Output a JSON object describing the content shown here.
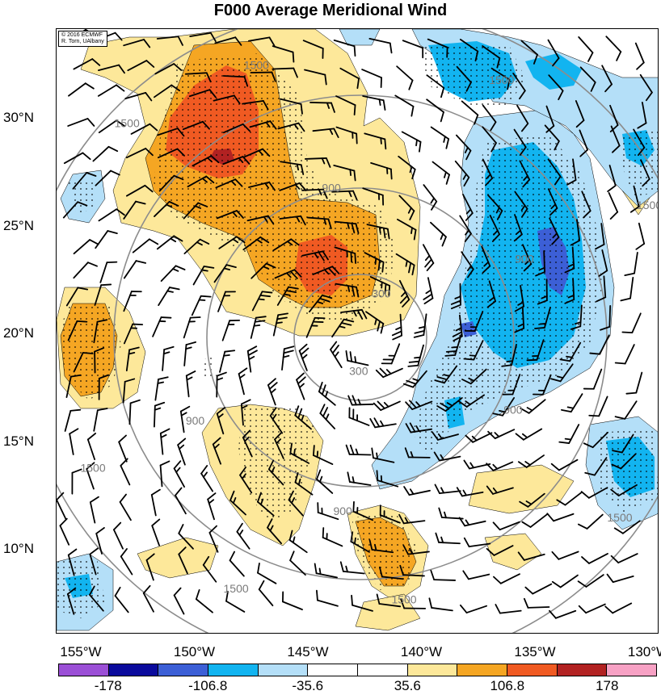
{
  "title": "F000 Average Meridional Wind",
  "credit": [
    "© 2016 ECMWF",
    "R. Torn, UAlbany"
  ],
  "lat_labels": [
    {
      "text": "30°N",
      "lat": 30
    },
    {
      "text": "25°N",
      "lat": 25
    },
    {
      "text": "20°N",
      "lat": 20
    },
    {
      "text": "15°N",
      "lat": 15
    },
    {
      "text": "10°N",
      "lat": 10
    }
  ],
  "lon_labels": [
    {
      "text": "155°W",
      "lon": -155
    },
    {
      "text": "150°W",
      "lon": -150
    },
    {
      "text": "145°W",
      "lon": -145
    },
    {
      "text": "140°W",
      "lon": -140
    },
    {
      "text": "135°W",
      "lon": -135
    },
    {
      "text": "130°W",
      "lon": -130
    }
  ],
  "colorbar": {
    "colors": [
      "#9b4fd6",
      "#0a0a9c",
      "#3c5fd6",
      "#12b4f0",
      "#b4dff8",
      "#ffffff",
      "#ffffff",
      "#fde89a",
      "#f5a623",
      "#f05a22",
      "#b22222",
      "#f7a1c4"
    ],
    "labels": [
      {
        "text": "-178",
        "boundary": 1
      },
      {
        "text": "-106.8",
        "boundary": 3
      },
      {
        "text": "-35.6",
        "boundary": 5
      },
      {
        "text": "35.6",
        "boundary": 7
      },
      {
        "text": "106.8",
        "boundary": 9
      },
      {
        "text": "178",
        "boundary": 11
      }
    ]
  },
  "contour_labels": [
    {
      "text": "1500",
      "lon": -147.3,
      "lat": 32.5
    },
    {
      "text": "1500",
      "lon": -136.5,
      "lat": 31.8
    },
    {
      "text": "1500",
      "lon": -153.0,
      "lat": 29.8
    },
    {
      "text": "1500",
      "lon": -130.0,
      "lat": 26.0
    },
    {
      "text": "1500",
      "lon": -154.5,
      "lat": 13.8
    },
    {
      "text": "1500",
      "lon": -131.3,
      "lat": 11.5
    },
    {
      "text": "1500",
      "lon": -148.2,
      "lat": 8.2
    },
    {
      "text": "1500",
      "lon": -140.8,
      "lat": 7.7
    },
    {
      "text": "900",
      "lon": -144.0,
      "lat": 26.8
    },
    {
      "text": "900",
      "lon": -150.0,
      "lat": 16.0
    },
    {
      "text": "900",
      "lon": -143.5,
      "lat": 11.8
    },
    {
      "text": "900",
      "lon": -136.0,
      "lat": 16.5
    },
    {
      "text": "900",
      "lon": -135.5,
      "lat": 23.5
    },
    {
      "text": "300",
      "lon": -142.8,
      "lat": 18.3
    },
    {
      "text": "300",
      "lon": -141.8,
      "lat": 21.9
    }
  ]
}
